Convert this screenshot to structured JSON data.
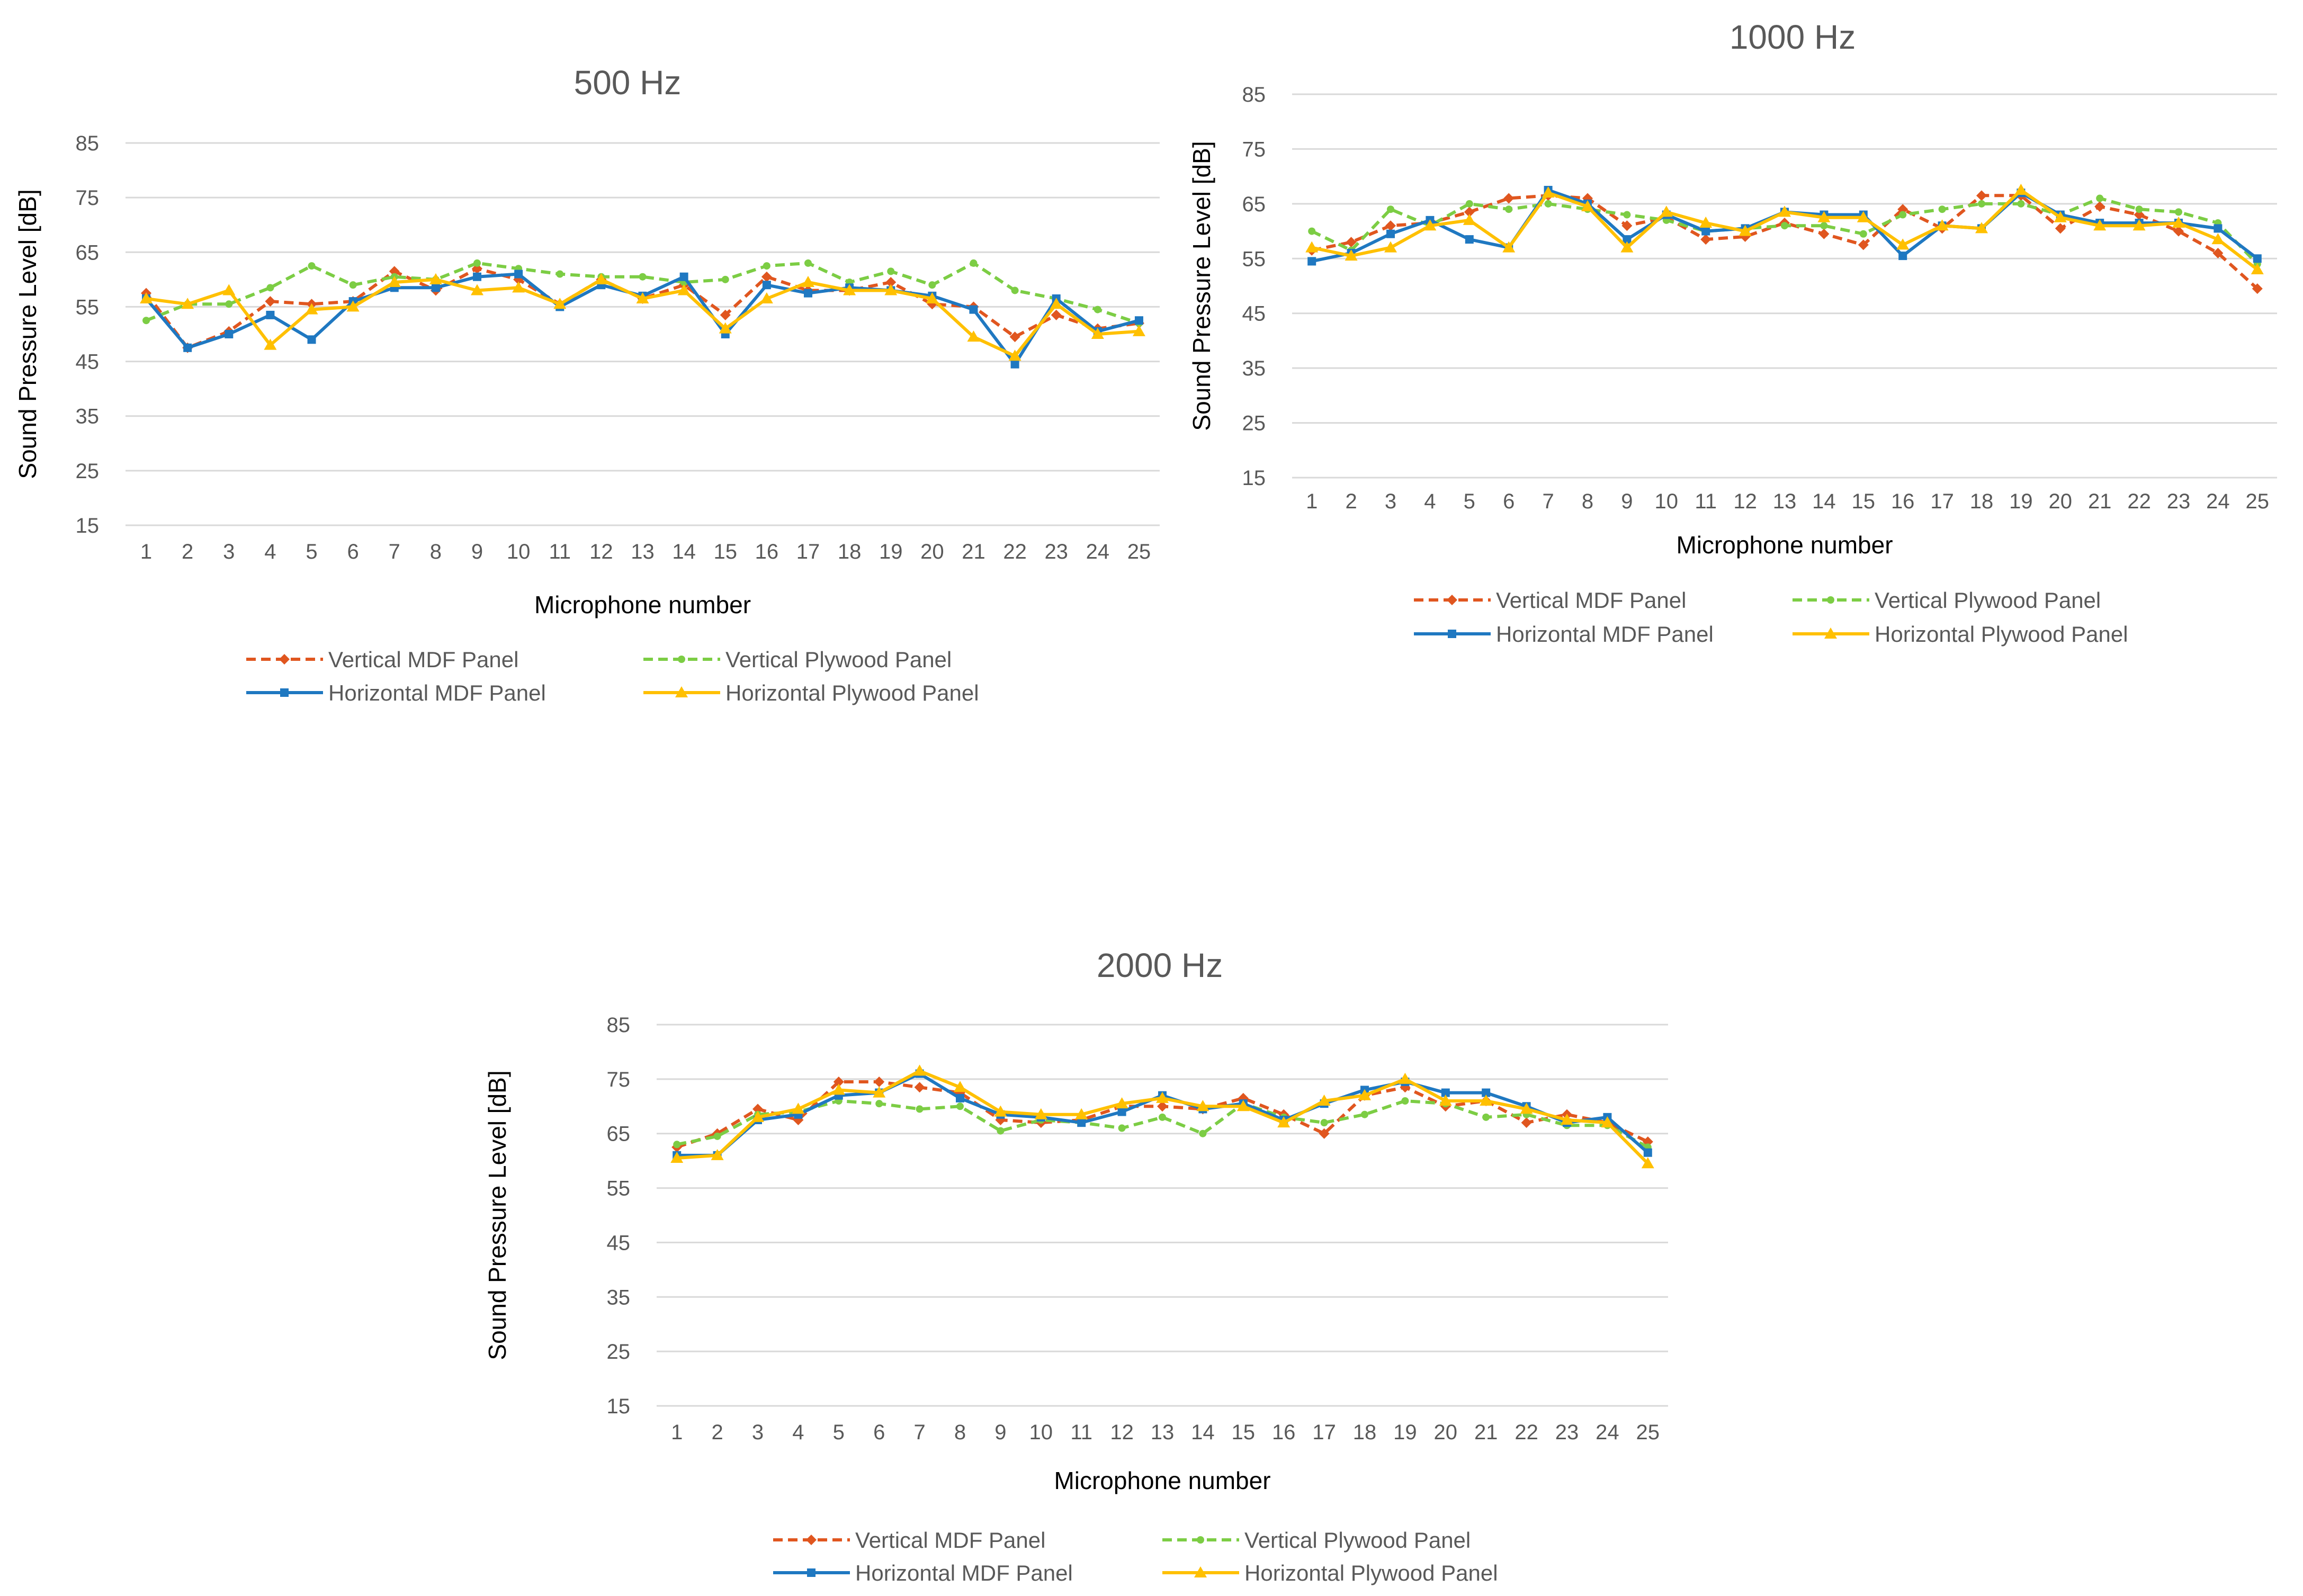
{
  "colors": {
    "vertical_mdf": "#e0561f",
    "vertical_plywood": "#7ccd44",
    "horizontal_mdf": "#1f78c1",
    "horizontal_plywood": "#ffc000"
  },
  "chart_data": [
    {
      "type": "line",
      "title": "500 Hz",
      "xlabel": "Microphone number",
      "ylabel": "Sound Pressure Level [dB]",
      "ylim": [
        15,
        85
      ],
      "yticks": [
        15,
        25,
        35,
        45,
        55,
        65,
        75,
        85
      ],
      "grid": true,
      "legend_position": "bottom",
      "categories": [
        "1",
        "2",
        "3",
        "4",
        "5",
        "6",
        "7",
        "8",
        "9",
        "10",
        "11",
        "12",
        "13",
        "14",
        "15",
        "16",
        "17",
        "18",
        "19",
        "20",
        "21",
        "22",
        "23",
        "24",
        "25"
      ],
      "series": [
        {
          "name": "Vertical MDF Panel",
          "style": "dashed",
          "marker": "diamond",
          "values": [
            57.5,
            47.5,
            50.5,
            56.0,
            55.5,
            56.0,
            61.5,
            58.0,
            62.0,
            60.0,
            55.5,
            60.0,
            56.5,
            59.0,
            53.5,
            60.5,
            58.0,
            58.0,
            59.5,
            55.5,
            55.0,
            49.5,
            53.5,
            51.0,
            52.0
          ]
        },
        {
          "name": "Vertical Plywood Panel",
          "style": "dashed",
          "marker": "dot",
          "values": [
            52.5,
            55.5,
            55.5,
            58.5,
            62.5,
            59.0,
            60.5,
            60.0,
            63.0,
            62.0,
            61.0,
            60.5,
            60.5,
            59.5,
            60.0,
            62.5,
            63.0,
            59.5,
            61.5,
            59.0,
            63.0,
            58.0,
            56.5,
            54.5,
            52.0
          ]
        },
        {
          "name": "Horizontal MDF Panel",
          "style": "solid",
          "marker": "square",
          "values": [
            56.5,
            47.5,
            50.0,
            53.5,
            49.0,
            56.0,
            58.5,
            58.5,
            60.5,
            61.0,
            55.0,
            59.0,
            57.0,
            60.5,
            50.0,
            59.0,
            57.5,
            58.5,
            58.0,
            57.0,
            54.5,
            44.5,
            56.5,
            50.5,
            52.5
          ]
        },
        {
          "name": "Horizontal Plywood Panel",
          "style": "solid",
          "marker": "triangle",
          "values": [
            56.5,
            55.5,
            58.0,
            48.0,
            54.5,
            55.0,
            59.5,
            60.0,
            58.0,
            58.5,
            55.5,
            60.0,
            56.5,
            58.0,
            51.0,
            56.5,
            59.5,
            58.0,
            58.0,
            56.5,
            49.5,
            46.0,
            55.5,
            50.0,
            50.5
          ]
        }
      ]
    },
    {
      "type": "line",
      "title": "1000 Hz",
      "xlabel": "Microphone number",
      "ylabel": "Sound Pressure Level [dB]",
      "ylim": [
        15,
        85
      ],
      "yticks": [
        15,
        25,
        35,
        45,
        55,
        65,
        75,
        85
      ],
      "grid": true,
      "legend_position": "bottom",
      "categories": [
        "1",
        "2",
        "3",
        "4",
        "5",
        "6",
        "7",
        "8",
        "9",
        "10",
        "11",
        "12",
        "13",
        "14",
        "15",
        "16",
        "17",
        "18",
        "19",
        "20",
        "21",
        "22",
        "23",
        "24",
        "25"
      ],
      "series": [
        {
          "name": "Vertical MDF Panel",
          "style": "dashed",
          "marker": "diamond",
          "values": [
            56.5,
            58.0,
            61.0,
            61.5,
            63.5,
            66.0,
            66.5,
            66.0,
            61.0,
            62.5,
            58.5,
            59.0,
            61.5,
            59.5,
            57.5,
            64.0,
            60.5,
            66.5,
            66.5,
            60.5,
            64.5,
            63.0,
            60.0,
            56.0,
            49.5
          ]
        },
        {
          "name": "Vertical Plywood Panel",
          "style": "dashed",
          "marker": "dot",
          "values": [
            60.0,
            56.5,
            64.0,
            61.0,
            65.0,
            64.0,
            65.0,
            64.0,
            63.0,
            62.0,
            60.0,
            60.5,
            61.0,
            61.0,
            59.5,
            63.0,
            64.0,
            65.0,
            65.0,
            63.0,
            66.0,
            64.0,
            63.5,
            61.5,
            54.0
          ]
        },
        {
          "name": "Horizontal MDF Panel",
          "style": "solid",
          "marker": "square",
          "values": [
            54.5,
            56.0,
            59.5,
            62.0,
            58.5,
            57.0,
            67.5,
            65.0,
            58.5,
            63.0,
            60.0,
            60.5,
            63.5,
            63.0,
            63.0,
            55.5,
            61.0,
            60.5,
            67.0,
            63.0,
            61.5,
            61.5,
            61.5,
            60.5,
            55.0
          ]
        },
        {
          "name": "Horizontal Plywood Panel",
          "style": "solid",
          "marker": "triangle",
          "values": [
            57.0,
            55.5,
            57.0,
            61.0,
            62.0,
            57.0,
            67.0,
            64.5,
            57.0,
            63.5,
            61.5,
            60.0,
            63.5,
            62.5,
            62.5,
            57.5,
            61.0,
            60.5,
            67.5,
            62.5,
            61.0,
            61.0,
            61.5,
            58.5,
            53.0
          ]
        }
      ]
    },
    {
      "type": "line",
      "title": "2000 Hz",
      "xlabel": "Microphone number",
      "ylabel": "Sound Pressure Level [dB]",
      "ylim": [
        15,
        85
      ],
      "yticks": [
        15,
        25,
        35,
        45,
        55,
        65,
        75,
        85
      ],
      "grid": true,
      "legend_position": "bottom",
      "categories": [
        "1",
        "2",
        "3",
        "4",
        "5",
        "6",
        "7",
        "8",
        "9",
        "10",
        "11",
        "12",
        "13",
        "14",
        "15",
        "16",
        "17",
        "18",
        "19",
        "20",
        "21",
        "22",
        "23",
        "24",
        "25"
      ],
      "series": [
        {
          "name": "Vertical MDF Panel",
          "style": "dashed",
          "marker": "diamond",
          "values": [
            62.5,
            65.0,
            69.5,
            67.5,
            74.5,
            74.5,
            73.5,
            72.5,
            67.5,
            67.0,
            67.5,
            70.0,
            70.0,
            69.5,
            71.5,
            68.5,
            65.0,
            72.0,
            73.5,
            70.0,
            71.0,
            67.0,
            68.5,
            67.0,
            63.5
          ]
        },
        {
          "name": "Vertical Plywood Panel",
          "style": "dashed",
          "marker": "dot",
          "values": [
            63.0,
            64.5,
            68.5,
            69.0,
            71.0,
            70.5,
            69.5,
            70.0,
            65.5,
            67.5,
            67.0,
            66.0,
            68.0,
            65.0,
            70.5,
            68.0,
            67.0,
            68.5,
            71.0,
            70.5,
            68.0,
            68.5,
            66.5,
            66.5,
            62.5
          ]
        },
        {
          "name": "Horizontal MDF Panel",
          "style": "solid",
          "marker": "square",
          "values": [
            61.0,
            61.0,
            67.5,
            68.5,
            72.0,
            72.5,
            76.0,
            71.5,
            68.5,
            68.0,
            67.0,
            69.0,
            72.0,
            69.5,
            70.5,
            67.5,
            70.5,
            73.0,
            74.5,
            72.5,
            72.5,
            70.0,
            67.0,
            68.0,
            61.5
          ]
        },
        {
          "name": "Horizontal Plywood Panel",
          "style": "solid",
          "marker": "triangle",
          "values": [
            60.5,
            61.0,
            68.0,
            69.5,
            73.0,
            72.5,
            76.5,
            73.5,
            69.0,
            68.5,
            68.5,
            70.5,
            71.5,
            70.0,
            70.0,
            67.0,
            71.0,
            72.0,
            75.0,
            71.0,
            71.0,
            69.5,
            67.5,
            67.0,
            59.5
          ]
        }
      ]
    }
  ]
}
